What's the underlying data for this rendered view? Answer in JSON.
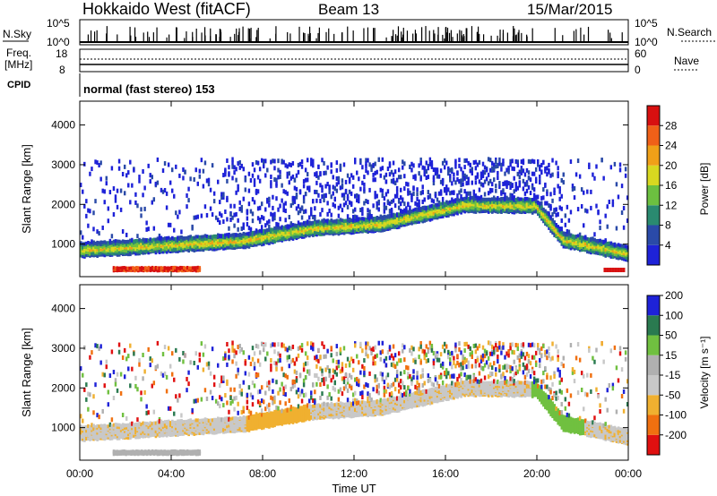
{
  "header": {
    "radar": "Hokkaido West (fitACF)",
    "beam": "Beam 13",
    "date": "15/Mar/2015"
  },
  "panels": {
    "nsky": {
      "label": "N.Sky",
      "right_label": "N.Search",
      "ticks": [
        "10^5",
        "10^0"
      ]
    },
    "freq": {
      "label_top": "Freq.",
      "label_unit": "[MHz]",
      "ticks_left": [
        "18",
        "8"
      ],
      "ticks_right": [
        "60",
        "0"
      ],
      "right_label": "Nave"
    },
    "cpid": {
      "label": "CPID",
      "text": "normal (fast stereo) 153"
    }
  },
  "colors": {
    "power": [
      "#1e22d8",
      "#2a4aa8",
      "#2a8a70",
      "#6cc040",
      "#d8d820",
      "#f0a018",
      "#f06018",
      "#d81010"
    ],
    "velocity": [
      "#e01010",
      "#f07010",
      "#f0b030",
      "#c8c8c8",
      "#b0b0b0",
      "#70c040",
      "#2a7a50",
      "#1e22d8"
    ]
  },
  "chart_data": [
    {
      "type": "heatmap",
      "title": "Power",
      "ylabel": "Slant Range [km]",
      "ylim": [
        180,
        4600
      ],
      "yticks": [
        1000,
        2000,
        3000,
        4000
      ],
      "xticks": [
        "00:00",
        "04:00",
        "08:00",
        "12:00",
        "16:00",
        "20:00",
        "00:00"
      ],
      "colorbar": {
        "label": "Power [dB]",
        "ticks": [
          "4",
          "8",
          "12",
          "16",
          "20",
          "24",
          "28"
        ]
      }
    },
    {
      "type": "heatmap",
      "title": "Velocity",
      "xlabel": "Time UT",
      "ylabel": "Slant Range [km]",
      "ylim": [
        180,
        4600
      ],
      "yticks": [
        1000,
        2000,
        3000,
        4000
      ],
      "xticks": [
        "00:00",
        "04:00",
        "08:00",
        "12:00",
        "16:00",
        "20:00",
        "00:00"
      ],
      "colorbar": {
        "label": "Velocity [m s⁻¹]",
        "ticks": [
          "-200",
          "-100",
          "-50",
          "-15",
          "15",
          "50",
          "100",
          "200"
        ]
      }
    }
  ]
}
